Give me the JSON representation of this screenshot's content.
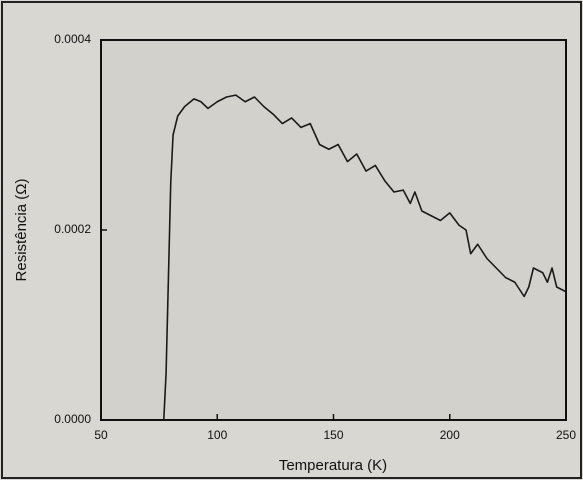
{
  "chart_data": {
    "type": "line",
    "xlabel": "Temperatura (K)",
    "ylabel": "Resistência (Ω)",
    "xlim": [
      50,
      250
    ],
    "ylim": [
      0,
      0.0004
    ],
    "xticks": [
      50,
      100,
      150,
      200,
      250
    ],
    "yticks": [
      {
        "value": 0,
        "label": "0.0000"
      },
      {
        "value": 0.0002,
        "label": "0.0002"
      },
      {
        "value": 0.0004,
        "label": "0.0004"
      }
    ],
    "x": [
      77,
      78,
      79,
      80,
      81,
      83,
      86,
      90,
      93,
      96,
      100,
      104,
      108,
      112,
      116,
      120,
      124,
      128,
      132,
      136,
      140,
      144,
      148,
      152,
      156,
      160,
      164,
      168,
      172,
      176,
      180,
      183,
      185,
      188,
      192,
      196,
      200,
      204,
      207,
      209,
      212,
      216,
      220,
      224,
      228,
      232,
      234,
      236,
      240,
      242,
      244,
      246,
      250
    ],
    "series": [
      {
        "color": "#1a1a1a",
        "values": [
          0,
          5e-05,
          0.00015,
          0.00025,
          0.0003,
          0.00032,
          0.00033,
          0.000338,
          0.000335,
          0.000328,
          0.000335,
          0.00034,
          0.000342,
          0.000335,
          0.00034,
          0.00033,
          0.000322,
          0.000312,
          0.000318,
          0.000308,
          0.000312,
          0.00029,
          0.000285,
          0.00029,
          0.000272,
          0.00028,
          0.000262,
          0.000268,
          0.000252,
          0.00024,
          0.000242,
          0.000228,
          0.00024,
          0.00022,
          0.000215,
          0.00021,
          0.000218,
          0.000205,
          0.0002,
          0.000175,
          0.000185,
          0.00017,
          0.00016,
          0.00015,
          0.000145,
          0.00013,
          0.00014,
          0.00016,
          0.000155,
          0.000145,
          0.00016,
          0.00014,
          0.000135
        ]
      }
    ]
  }
}
